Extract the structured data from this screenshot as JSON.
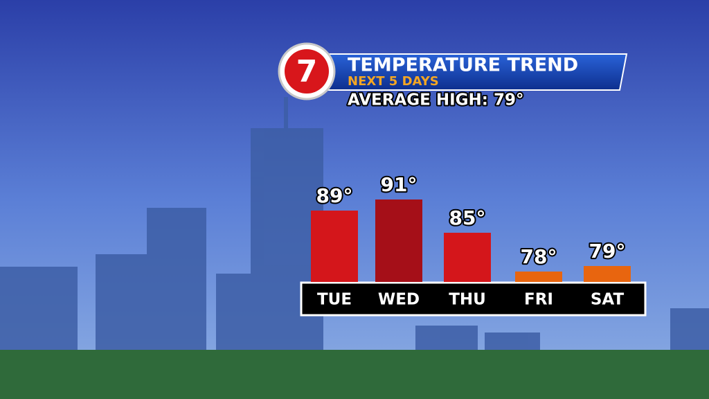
{
  "chart_data": {
    "type": "bar",
    "logo": "7",
    "title": "TEMPERATURE TREND",
    "subtitle": "NEXT 5 DAYS",
    "annotation": "AVERAGE HIGH: 79°",
    "categories": [
      "TUE",
      "WED",
      "THU",
      "FRI",
      "SAT"
    ],
    "values": [
      89,
      91,
      85,
      78,
      79
    ],
    "value_labels": [
      "89°",
      "91°",
      "85°",
      "78°",
      "79°"
    ],
    "colors": [
      "#d4161b",
      "#a50f18",
      "#d4161b",
      "#e8650f",
      "#e8650f"
    ]
  }
}
